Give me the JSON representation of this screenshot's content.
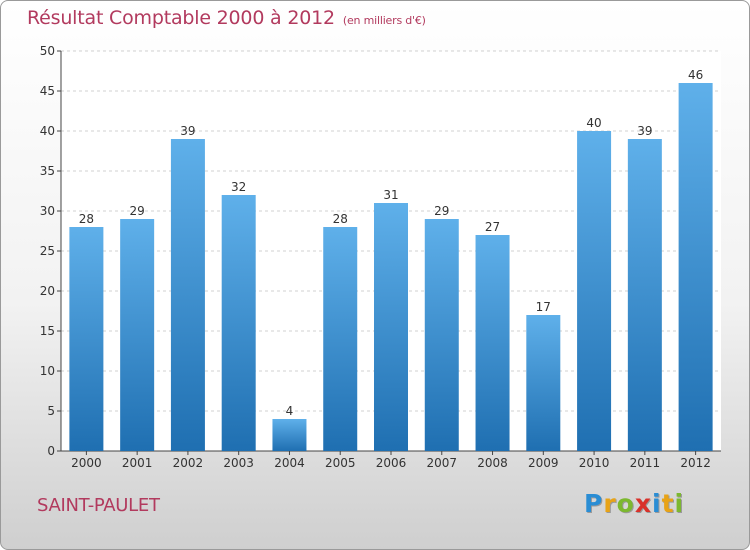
{
  "title": "Résultat Comptable 2000 à 2012",
  "unit_note": "(en milliers d'€)",
  "town": "SAINT-PAULET",
  "logo": {
    "letters": [
      "P",
      "r",
      "o",
      "x",
      "i",
      "t",
      "i"
    ],
    "colors": [
      "#2a8dd4",
      "#e8a317",
      "#7cb82f",
      "#d9312a",
      "#2a8dd4",
      "#e8a317",
      "#7cb82f"
    ]
  },
  "colors": {
    "bar_top": "#5fb0ea",
    "bar_bottom": "#1f6fb1",
    "accent": "#b23a5e"
  },
  "chart_data": {
    "type": "bar",
    "title": "Résultat Comptable 2000 à 2012",
    "ylabel": "en milliers d'€",
    "xlabel": "",
    "categories": [
      "2000",
      "2001",
      "2002",
      "2003",
      "2004",
      "2005",
      "2006",
      "2007",
      "2008",
      "2009",
      "2010",
      "2011",
      "2012"
    ],
    "values": [
      28,
      29,
      39,
      32,
      4,
      28,
      31,
      29,
      27,
      17,
      40,
      39,
      46
    ],
    "ylim": [
      0,
      50
    ],
    "yticks": [
      0,
      5,
      10,
      15,
      20,
      25,
      30,
      35,
      40,
      45,
      50
    ],
    "grid": true
  }
}
